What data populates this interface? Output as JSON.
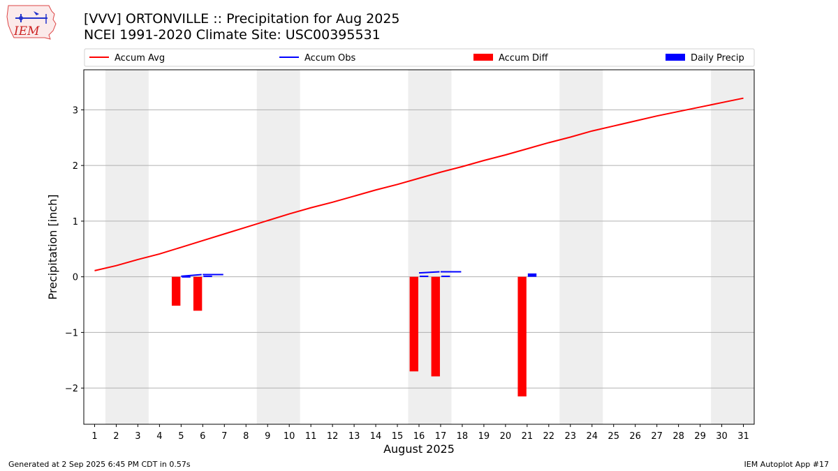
{
  "title": "[VVV] ORTONVILLE :: Precipitation for Aug 2025",
  "subtitle": "NCEI 1991-2020 Climate Site: USC00395531",
  "footer_left": "Generated at 2 Sep 2025 6:45 PM CDT in 0.57s",
  "footer_right": "IEM Autoplot App #17",
  "logo_text": "IEM",
  "colors": {
    "avg": "#ff0000",
    "obs": "#0000ff",
    "diff": "#ff0000",
    "daily": "#0000ff",
    "weekend": "#eeeeee",
    "grid": "#b0b0b0"
  },
  "chart_data": {
    "type": "bar",
    "xlabel": "August 2025",
    "ylabel": "Precipitation [inch]",
    "ylim": [
      -2.65,
      3.72
    ],
    "xlim": [
      0.5,
      31.5
    ],
    "yticks": [
      -2,
      -1,
      0,
      1,
      2,
      3
    ],
    "ytick_labels": [
      "−2",
      "−1",
      "0",
      "1",
      "2",
      "3"
    ],
    "days": [
      1,
      2,
      3,
      4,
      5,
      6,
      7,
      8,
      9,
      10,
      11,
      12,
      13,
      14,
      15,
      16,
      17,
      18,
      19,
      20,
      21,
      22,
      23,
      24,
      25,
      26,
      27,
      28,
      29,
      30,
      31
    ],
    "grid": true,
    "legend_position": "top",
    "weekend_spans": [
      [
        1.5,
        3.5
      ],
      [
        8.5,
        10.5
      ],
      [
        15.5,
        17.5
      ],
      [
        22.5,
        24.5
      ],
      [
        29.5,
        31.5
      ]
    ],
    "legend": [
      "Accum Avg",
      "Accum Obs",
      "Accum Diff",
      "Daily Precip"
    ],
    "series": [
      {
        "name": "Accum Avg",
        "kind": "line",
        "values": [
          0.11,
          0.2,
          0.31,
          0.41,
          0.53,
          0.65,
          0.77,
          0.89,
          1.01,
          1.13,
          1.24,
          1.34,
          1.45,
          1.56,
          1.66,
          1.77,
          1.88,
          1.98,
          2.09,
          2.19,
          2.3,
          2.41,
          2.51,
          2.62,
          2.71,
          2.8,
          2.89,
          2.97,
          3.05,
          3.13,
          3.21
        ]
      },
      {
        "name": "Accum Obs",
        "kind": "step",
        "segments": [
          {
            "day": 5,
            "value": 0.01
          },
          {
            "day": 6,
            "value": 0.04
          },
          {
            "day": 16,
            "value": 0.07
          },
          {
            "day": 17,
            "value": 0.09
          }
        ]
      },
      {
        "name": "Accum Diff",
        "kind": "bar",
        "points": [
          {
            "day": 5,
            "value": -0.52
          },
          {
            "day": 6,
            "value": -0.61
          },
          {
            "day": 16,
            "value": -1.7
          },
          {
            "day": 17,
            "value": -1.79
          },
          {
            "day": 21,
            "value": -2.15
          }
        ]
      },
      {
        "name": "Daily Precip",
        "kind": "bar",
        "points": [
          {
            "day": 5,
            "value": 0.01
          },
          {
            "day": 6,
            "value": 0.02
          },
          {
            "day": 16,
            "value": 0.02
          },
          {
            "day": 17,
            "value": 0.02
          },
          {
            "day": 21,
            "value": 0.06
          }
        ]
      }
    ]
  }
}
